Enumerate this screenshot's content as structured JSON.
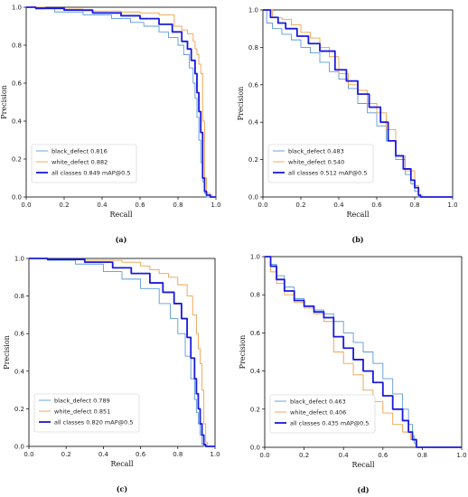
{
  "chart_data": [
    {
      "type": "line",
      "panel_label": "(a)",
      "xlabel": "Recall",
      "ylabel": "Precision",
      "xlim": [
        0.0,
        1.0
      ],
      "ylim": [
        0.0,
        1.0
      ],
      "xticks": [
        "0.0",
        "0.2",
        "0.4",
        "0.6",
        "0.8",
        "1.0"
      ],
      "yticks": [
        "0.0",
        "0.2",
        "0.4",
        "0.6",
        "0.8",
        "1.0"
      ],
      "legend_position": "lower-left",
      "series": [
        {
          "name": "black_defect 0.816",
          "color": "#5b9bd5",
          "points": [
            [
              0,
              1.0
            ],
            [
              0.05,
              0.99
            ],
            [
              0.15,
              0.975
            ],
            [
              0.3,
              0.96
            ],
            [
              0.45,
              0.94
            ],
            [
              0.55,
              0.92
            ],
            [
              0.62,
              0.9
            ],
            [
              0.7,
              0.87
            ],
            [
              0.75,
              0.84
            ],
            [
              0.8,
              0.8
            ],
            [
              0.83,
              0.75
            ],
            [
              0.86,
              0.68
            ],
            [
              0.88,
              0.6
            ],
            [
              0.89,
              0.52
            ],
            [
              0.9,
              0.42
            ],
            [
              0.91,
              0.3
            ],
            [
              0.92,
              0.18
            ],
            [
              0.93,
              0.08
            ],
            [
              0.94,
              0.02
            ],
            [
              0.95,
              0.0
            ],
            [
              1.0,
              0.0
            ]
          ]
        },
        {
          "name": "white_defect 0.882",
          "color": "#f0a04b",
          "points": [
            [
              0,
              1.0
            ],
            [
              0.1,
              0.99
            ],
            [
              0.3,
              0.98
            ],
            [
              0.5,
              0.975
            ],
            [
              0.6,
              0.97
            ],
            [
              0.7,
              0.96
            ],
            [
              0.78,
              0.9
            ],
            [
              0.82,
              0.88
            ],
            [
              0.85,
              0.86
            ],
            [
              0.88,
              0.82
            ],
            [
              0.89,
              0.78
            ],
            [
              0.9,
              0.75
            ],
            [
              0.91,
              0.7
            ],
            [
              0.92,
              0.65
            ],
            [
              0.93,
              0.4
            ],
            [
              0.94,
              0.1
            ],
            [
              0.95,
              0.02
            ],
            [
              0.97,
              0.01
            ],
            [
              0.98,
              0.0
            ],
            [
              1.0,
              0.0
            ]
          ]
        },
        {
          "name": "all classes 0.849 mAP@0.5",
          "color": "#1a1adc",
          "bold": true,
          "points": [
            [
              0,
              1.0
            ],
            [
              0.05,
              0.995
            ],
            [
              0.2,
              0.985
            ],
            [
              0.35,
              0.97
            ],
            [
              0.5,
              0.955
            ],
            [
              0.6,
              0.94
            ],
            [
              0.7,
              0.91
            ],
            [
              0.77,
              0.87
            ],
            [
              0.82,
              0.82
            ],
            [
              0.85,
              0.78
            ],
            [
              0.87,
              0.72
            ],
            [
              0.89,
              0.65
            ],
            [
              0.9,
              0.55
            ],
            [
              0.91,
              0.45
            ],
            [
              0.92,
              0.34
            ],
            [
              0.93,
              0.1
            ],
            [
              0.94,
              0.03
            ],
            [
              0.95,
              0.01
            ],
            [
              0.97,
              0.0
            ],
            [
              1.0,
              0.0
            ]
          ]
        }
      ]
    },
    {
      "type": "line",
      "panel_label": "(b)",
      "xlabel": "Recall",
      "ylabel": "Precision",
      "xlim": [
        0.0,
        1.0
      ],
      "ylim": [
        0.0,
        1.0
      ],
      "xticks": [
        "0.0",
        "0.2",
        "0.4",
        "0.6",
        "0.8",
        "1.0"
      ],
      "yticks": [
        "0.0",
        "0.2",
        "0.4",
        "0.6",
        "0.8",
        "1.0"
      ],
      "legend_position": "lower-left",
      "series": [
        {
          "name": "black_defect 0.483",
          "color": "#5b9bd5",
          "points": [
            [
              0,
              1.0
            ],
            [
              0.02,
              0.93
            ],
            [
              0.05,
              0.9
            ],
            [
              0.1,
              0.87
            ],
            [
              0.15,
              0.84
            ],
            [
              0.2,
              0.8
            ],
            [
              0.25,
              0.77
            ],
            [
              0.3,
              0.72
            ],
            [
              0.35,
              0.67
            ],
            [
              0.4,
              0.63
            ],
            [
              0.45,
              0.58
            ],
            [
              0.5,
              0.5
            ],
            [
              0.55,
              0.45
            ],
            [
              0.6,
              0.38
            ],
            [
              0.65,
              0.3
            ],
            [
              0.7,
              0.2
            ],
            [
              0.75,
              0.12
            ],
            [
              0.78,
              0.07
            ],
            [
              0.8,
              0.03
            ],
            [
              0.82,
              0.0
            ],
            [
              1.0,
              0.0
            ]
          ]
        },
        {
          "name": "white_defect 0.540",
          "color": "#f0a04b",
          "points": [
            [
              0,
              1.0
            ],
            [
              0.05,
              0.96
            ],
            [
              0.1,
              0.95
            ],
            [
              0.15,
              0.92
            ],
            [
              0.2,
              0.88
            ],
            [
              0.25,
              0.85
            ],
            [
              0.3,
              0.8
            ],
            [
              0.35,
              0.75
            ],
            [
              0.4,
              0.66
            ],
            [
              0.45,
              0.6
            ],
            [
              0.5,
              0.57
            ],
            [
              0.55,
              0.5
            ],
            [
              0.6,
              0.45
            ],
            [
              0.65,
              0.36
            ],
            [
              0.7,
              0.22
            ],
            [
              0.75,
              0.14
            ],
            [
              0.8,
              0.06
            ],
            [
              0.82,
              0.01
            ],
            [
              0.84,
              0.0
            ],
            [
              1.0,
              0.0
            ]
          ]
        },
        {
          "name": "all classes 0.512 mAP@0.5",
          "color": "#1a1adc",
          "bold": true,
          "points": [
            [
              0,
              1.0
            ],
            [
              0.04,
              0.96
            ],
            [
              0.08,
              0.93
            ],
            [
              0.12,
              0.9
            ],
            [
              0.18,
              0.86
            ],
            [
              0.24,
              0.82
            ],
            [
              0.3,
              0.78
            ],
            [
              0.38,
              0.68
            ],
            [
              0.44,
              0.62
            ],
            [
              0.5,
              0.55
            ],
            [
              0.56,
              0.48
            ],
            [
              0.62,
              0.4
            ],
            [
              0.66,
              0.3
            ],
            [
              0.7,
              0.22
            ],
            [
              0.74,
              0.15
            ],
            [
              0.78,
              0.09
            ],
            [
              0.8,
              0.05
            ],
            [
              0.82,
              0.01
            ],
            [
              0.83,
              0.0
            ],
            [
              1.0,
              0.0
            ]
          ]
        }
      ]
    },
    {
      "type": "line",
      "panel_label": "(c)",
      "xlabel": "Recall",
      "ylabel": "Precision",
      "xlim": [
        0.0,
        1.0
      ],
      "ylim": [
        0.0,
        1.0
      ],
      "xticks": [
        "0.0",
        "0.2",
        "0.4",
        "0.6",
        "0.8",
        "1.0"
      ],
      "yticks": [
        "0.0",
        "0.2",
        "0.4",
        "0.6",
        "0.8",
        "1.0"
      ],
      "legend_position": "lower-left",
      "series": [
        {
          "name": "black_defect 0.789",
          "color": "#5b9bd5",
          "points": [
            [
              0,
              1.0
            ],
            [
              0.1,
              0.99
            ],
            [
              0.25,
              0.97
            ],
            [
              0.4,
              0.93
            ],
            [
              0.5,
              0.89
            ],
            [
              0.6,
              0.84
            ],
            [
              0.7,
              0.76
            ],
            [
              0.76,
              0.68
            ],
            [
              0.8,
              0.6
            ],
            [
              0.84,
              0.48
            ],
            [
              0.87,
              0.36
            ],
            [
              0.89,
              0.25
            ],
            [
              0.9,
              0.18
            ],
            [
              0.91,
              0.12
            ],
            [
              0.92,
              0.06
            ],
            [
              0.93,
              0.01
            ],
            [
              0.94,
              0.0
            ],
            [
              1.0,
              0.0
            ]
          ]
        },
        {
          "name": "white_defect 0.851",
          "color": "#f0a04b",
          "points": [
            [
              0,
              1.0
            ],
            [
              0.1,
              0.995
            ],
            [
              0.3,
              0.99
            ],
            [
              0.5,
              0.98
            ],
            [
              0.6,
              0.96
            ],
            [
              0.65,
              0.94
            ],
            [
              0.7,
              0.92
            ],
            [
              0.75,
              0.9
            ],
            [
              0.8,
              0.86
            ],
            [
              0.85,
              0.8
            ],
            [
              0.88,
              0.7
            ],
            [
              0.9,
              0.6
            ],
            [
              0.91,
              0.52
            ],
            [
              0.92,
              0.44
            ],
            [
              0.93,
              0.3
            ],
            [
              0.94,
              0.12
            ],
            [
              0.95,
              0.02
            ],
            [
              0.96,
              0.0
            ],
            [
              1.0,
              0.0
            ]
          ]
        },
        {
          "name": "all classes 0.820 mAP@0.5",
          "color": "#1a1adc",
          "bold": true,
          "points": [
            [
              0,
              1.0
            ],
            [
              0.1,
              0.995
            ],
            [
              0.3,
              0.98
            ],
            [
              0.45,
              0.95
            ],
            [
              0.55,
              0.92
            ],
            [
              0.65,
              0.87
            ],
            [
              0.72,
              0.82
            ],
            [
              0.78,
              0.76
            ],
            [
              0.82,
              0.68
            ],
            [
              0.85,
              0.58
            ],
            [
              0.87,
              0.47
            ],
            [
              0.89,
              0.36
            ],
            [
              0.9,
              0.28
            ],
            [
              0.91,
              0.2
            ],
            [
              0.92,
              0.12
            ],
            [
              0.93,
              0.06
            ],
            [
              0.94,
              0.01
            ],
            [
              0.95,
              0.0
            ],
            [
              1.0,
              0.0
            ]
          ]
        }
      ]
    },
    {
      "type": "line",
      "panel_label": "(d)",
      "xlabel": "Recall",
      "ylabel": "Precision",
      "xlim": [
        0.0,
        1.0
      ],
      "ylim": [
        0.0,
        1.0
      ],
      "xticks": [
        "0.0",
        "0.2",
        "0.4",
        "0.6",
        "0.8",
        "1.0"
      ],
      "yticks": [
        "0.0",
        "0.2",
        "0.4",
        "0.6",
        "0.8",
        "1.0"
      ],
      "legend_position": "lower-left",
      "series": [
        {
          "name": "black_defect 0.463",
          "color": "#5b9bd5",
          "points": [
            [
              0,
              1.0
            ],
            [
              0.03,
              0.96
            ],
            [
              0.06,
              0.9
            ],
            [
              0.1,
              0.84
            ],
            [
              0.15,
              0.78
            ],
            [
              0.2,
              0.74
            ],
            [
              0.25,
              0.72
            ],
            [
              0.3,
              0.7
            ],
            [
              0.35,
              0.66
            ],
            [
              0.4,
              0.6
            ],
            [
              0.45,
              0.55
            ],
            [
              0.5,
              0.5
            ],
            [
              0.55,
              0.44
            ],
            [
              0.6,
              0.36
            ],
            [
              0.65,
              0.28
            ],
            [
              0.7,
              0.2
            ],
            [
              0.73,
              0.12
            ],
            [
              0.75,
              0.06
            ],
            [
              0.76,
              0.02
            ],
            [
              0.77,
              0.0
            ],
            [
              1.0,
              0.0
            ]
          ]
        },
        {
          "name": "white_defect 0.406",
          "color": "#f0a04b",
          "points": [
            [
              0,
              1.0
            ],
            [
              0.03,
              0.92
            ],
            [
              0.06,
              0.86
            ],
            [
              0.1,
              0.8
            ],
            [
              0.15,
              0.76
            ],
            [
              0.2,
              0.73
            ],
            [
              0.25,
              0.7
            ],
            [
              0.3,
              0.66
            ],
            [
              0.35,
              0.5
            ],
            [
              0.4,
              0.44
            ],
            [
              0.45,
              0.38
            ],
            [
              0.5,
              0.3
            ],
            [
              0.55,
              0.24
            ],
            [
              0.6,
              0.18
            ],
            [
              0.65,
              0.12
            ],
            [
              0.7,
              0.08
            ],
            [
              0.74,
              0.04
            ],
            [
              0.77,
              0.0
            ],
            [
              1.0,
              0.0
            ]
          ]
        },
        {
          "name": "all classes 0.435 mAP@0.5",
          "color": "#1a1adc",
          "bold": true,
          "points": [
            [
              0,
              1.0
            ],
            [
              0.03,
              0.95
            ],
            [
              0.06,
              0.88
            ],
            [
              0.1,
              0.82
            ],
            [
              0.15,
              0.77
            ],
            [
              0.2,
              0.74
            ],
            [
              0.25,
              0.71
            ],
            [
              0.3,
              0.68
            ],
            [
              0.35,
              0.58
            ],
            [
              0.4,
              0.52
            ],
            [
              0.45,
              0.46
            ],
            [
              0.5,
              0.4
            ],
            [
              0.55,
              0.34
            ],
            [
              0.6,
              0.27
            ],
            [
              0.65,
              0.2
            ],
            [
              0.7,
              0.14
            ],
            [
              0.73,
              0.08
            ],
            [
              0.75,
              0.04
            ],
            [
              0.77,
              0.0
            ],
            [
              1.0,
              0.0
            ]
          ]
        }
      ]
    }
  ]
}
